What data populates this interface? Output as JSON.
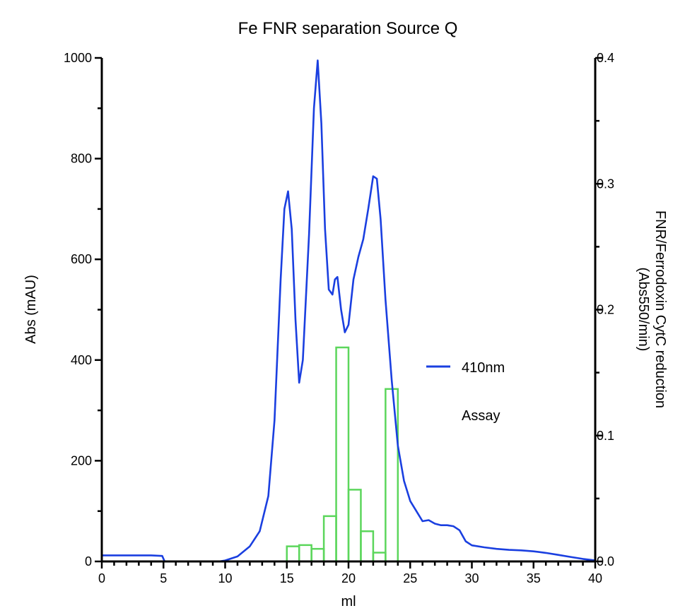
{
  "chart_data": {
    "type": "line",
    "title": "Fe FNR separation Source Q",
    "xlabel": "ml",
    "ylabel_left": "Abs (mAU)",
    "ylabel_right_line1": "FNR/Ferrodoxin CytC reduction",
    "ylabel_right_line2": "(Abs550/min)",
    "xlim": [
      0,
      40
    ],
    "ylim_left": [
      0,
      1000
    ],
    "ylim_right": [
      0,
      0.4
    ],
    "x_ticks": [
      0,
      5,
      10,
      15,
      20,
      25,
      30,
      35,
      40
    ],
    "x_tick_labels": [
      "0",
      "5",
      "10",
      "15",
      "20",
      "25",
      "30",
      "35",
      "40"
    ],
    "y_left_ticks": [
      0,
      200,
      400,
      600,
      800,
      1000
    ],
    "y_left_tick_labels": [
      "0",
      "200",
      "400",
      "600",
      "800",
      "1000"
    ],
    "y_right_ticks": [
      0,
      0.1,
      0.2,
      0.3,
      0.4
    ],
    "y_right_tick_labels": [
      "0.0",
      "0.1",
      "0.2",
      "0.3",
      "0.4"
    ],
    "grid": false,
    "legend_position": "right",
    "colors": {
      "line": "#1a3fe0",
      "bars": "#5cd65c",
      "axis": "#000000"
    },
    "series": [
      {
        "name": "410nm",
        "type": "line",
        "axis": "left",
        "x": [
          0,
          2,
          4,
          4.9,
          5.0,
          5.1,
          6,
          8,
          9.5,
          10,
          11,
          12,
          12.8,
          13.5,
          14,
          14.5,
          14.8,
          15.1,
          15.4,
          15.7,
          16.0,
          16.3,
          16.8,
          17.2,
          17.5,
          17.8,
          18.1,
          18.4,
          18.7,
          18.9,
          19.1,
          19.4,
          19.7,
          20.0,
          20.4,
          20.8,
          21.2,
          21.6,
          22.0,
          22.3,
          22.6,
          23.0,
          23.5,
          24.0,
          24.5,
          25.0,
          25.5,
          26.0,
          26.5,
          27.0,
          27.5,
          28.0,
          28.5,
          29.0,
          29.5,
          30,
          31,
          32,
          33,
          34,
          35,
          36,
          37,
          38,
          39,
          40
        ],
        "values": [
          12,
          12,
          12,
          11,
          5,
          0,
          0,
          0,
          0,
          2,
          10,
          30,
          60,
          130,
          280,
          560,
          700,
          735,
          660,
          480,
          355,
          400,
          650,
          900,
          995,
          870,
          660,
          540,
          530,
          560,
          565,
          500,
          455,
          470,
          560,
          605,
          640,
          700,
          765,
          760,
          680,
          520,
          360,
          230,
          160,
          120,
          100,
          80,
          82,
          75,
          72,
          72,
          70,
          62,
          40,
          32,
          28,
          25,
          23,
          22,
          20,
          17,
          13,
          9,
          5,
          2
        ]
      },
      {
        "name": "Assay",
        "type": "bar",
        "axis": "right",
        "bins": [
          [
            15,
            16
          ],
          [
            16,
            17
          ],
          [
            17,
            18
          ],
          [
            18,
            19
          ],
          [
            19,
            20
          ],
          [
            20,
            21
          ],
          [
            21,
            22
          ],
          [
            22,
            23
          ],
          [
            23,
            24
          ]
        ],
        "values": [
          0.012,
          0.013,
          0.01,
          0.036,
          0.17,
          0.057,
          0.024,
          0.007,
          0.137
        ]
      }
    ]
  }
}
